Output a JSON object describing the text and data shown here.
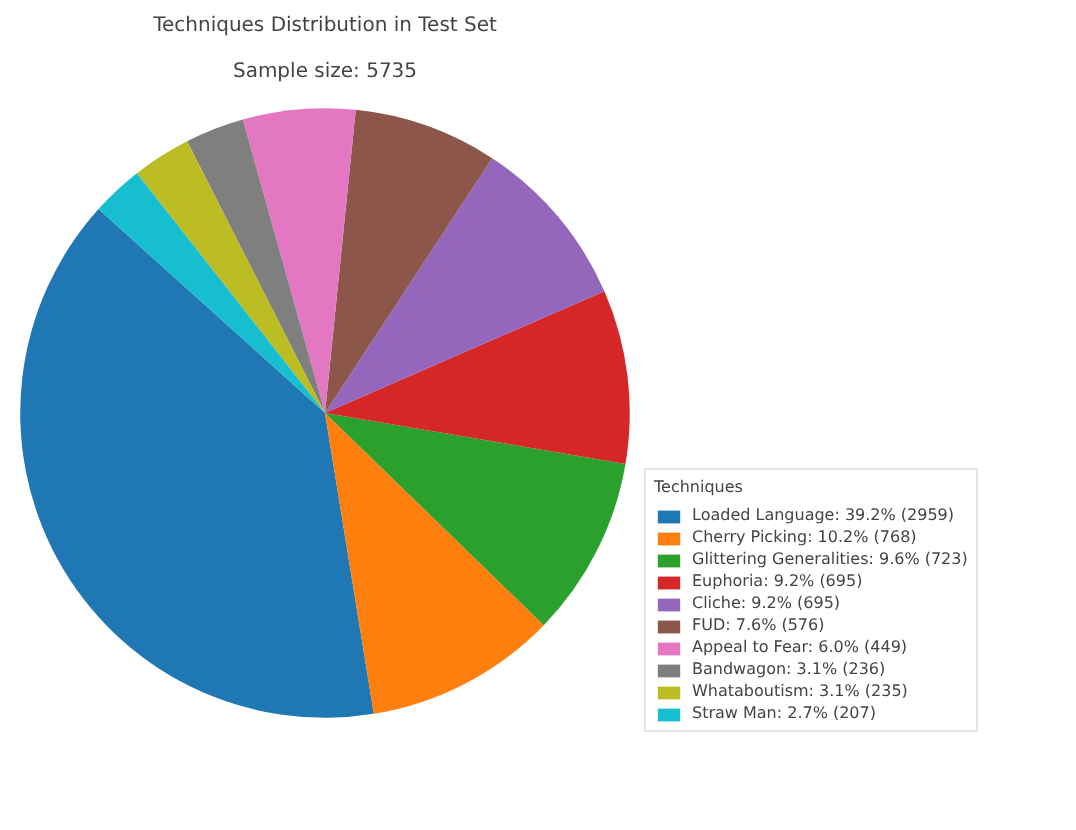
{
  "chart_data": {
    "type": "pie",
    "title": "Techniques Distribution in Test Set",
    "subtitle": "Sample size: 5735",
    "legend_title": "Techniques",
    "legend": "right",
    "categories": [
      "Loaded Language: 39.2% (2959)",
      "Cherry Picking: 10.2% (768)",
      "Glittering Generalities: 9.6% (723)",
      "Euphoria: 9.2% (695)",
      "Cliche: 9.2% (695)",
      "FUD: 7.6% (576)",
      "Appeal to Fear: 6.0% (449)",
      "Bandwagon: 3.1% (236)",
      "Whataboutism: 3.1% (235)",
      "Straw Man: 2.7% (207)"
    ],
    "values": [
      2959,
      768,
      723,
      695,
      695,
      576,
      449,
      236,
      235,
      207
    ],
    "colors": [
      "#1f77b4",
      "#ff7f0e",
      "#2ca02c",
      "#d62728",
      "#9467bd",
      "#8c564b",
      "#e377c2",
      "#7f7f7f",
      "#bcbd22",
      "#17becf"
    ]
  }
}
